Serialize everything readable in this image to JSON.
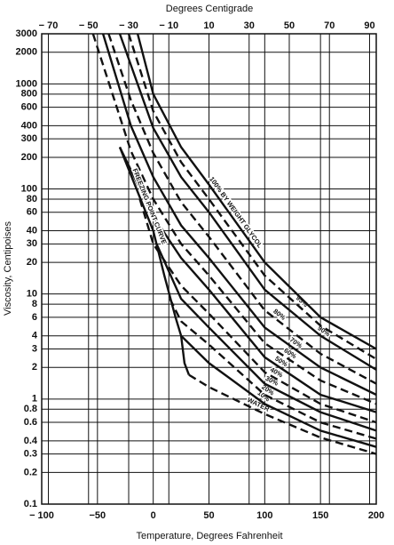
{
  "chart_data": {
    "type": "line",
    "title": "Degrees Centigrade",
    "xlabel": "Temperature, Degrees Fahrenheit",
    "ylabel": "Viscosity, Centipoises",
    "yscale": "log",
    "grid": true,
    "color": "#111",
    "xlim": [
      -100,
      200
    ],
    "xticks": [
      {
        "value": -100,
        "label": "− 100"
      },
      {
        "value": -50,
        "label": "−50"
      },
      0,
      50,
      100,
      150,
      200
    ],
    "x2lim": [
      -73.33,
      93.33
    ],
    "x2ticks": [
      {
        "value": -70,
        "label": "− 70"
      },
      {
        "value": -50,
        "label": "− 50"
      },
      {
        "value": -30,
        "label": "− 30"
      },
      {
        "value": -10,
        "label": "− 10"
      },
      10,
      30,
      50,
      70,
      90
    ],
    "ylim": [
      0.1,
      3000
    ],
    "yticks": [
      0.1,
      0.2,
      0.3,
      0.4,
      0.6,
      0.8,
      1,
      2,
      3,
      4,
      6,
      8,
      10,
      20,
      30,
      40,
      60,
      80,
      100,
      200,
      300,
      400,
      600,
      800,
      1000,
      2000,
      3000
    ],
    "series": [
      {
        "name": "WATER",
        "dashed": true,
        "x": [
          32,
          50,
          100,
          150,
          200
        ],
        "values": [
          1.7,
          1.3,
          0.72,
          0.43,
          0.3
        ]
      },
      {
        "name": "10%",
        "dashed": false,
        "x": [
          25,
          50,
          100,
          150,
          200
        ],
        "values": [
          4,
          2.2,
          0.9,
          0.5,
          0.35
        ]
      },
      {
        "name": "20%",
        "dashed": true,
        "x": [
          15,
          25,
          50,
          100,
          150,
          200
        ],
        "values": [
          9,
          5.5,
          3.3,
          1.1,
          0.6,
          0.42
        ]
      },
      {
        "name": "30%",
        "dashed": false,
        "x": [
          3,
          25,
          50,
          100,
          150,
          200
        ],
        "values": [
          30,
          9,
          4.8,
          1.4,
          0.75,
          0.5
        ]
      },
      {
        "name": "40%",
        "dashed": true,
        "x": [
          -12,
          0,
          25,
          50,
          100,
          150,
          200
        ],
        "values": [
          80,
          30,
          12,
          6.5,
          1.8,
          0.9,
          0.6
        ]
      },
      {
        "name": "50%",
        "dashed": false,
        "x": [
          -30,
          0,
          25,
          50,
          100,
          150,
          200
        ],
        "values": [
          250,
          55,
          22,
          11,
          2.5,
          1.1,
          0.75
        ]
      },
      {
        "name": "60%",
        "dashed": true,
        "x": [
          -54,
          -20,
          0,
          25,
          50,
          100,
          150,
          200
        ],
        "values": [
          3000,
          230,
          80,
          30,
          15,
          3.4,
          1.5,
          0.9
        ]
      },
      {
        "name": "70%",
        "dashed": false,
        "x": [
          -45,
          -20,
          0,
          25,
          50,
          100,
          150,
          200
        ],
        "values": [
          3000,
          400,
          130,
          45,
          22,
          4.8,
          2,
          1.1
        ]
      },
      {
        "name": "80%",
        "dashed": true,
        "x": [
          -40,
          -20,
          0,
          25,
          50,
          100,
          150,
          200
        ],
        "values": [
          3000,
          700,
          220,
          75,
          35,
          7,
          2.7,
          1.4
        ]
      },
      {
        "name": "90%",
        "dashed": false,
        "x": [
          -30,
          0,
          25,
          50,
          100,
          150,
          200
        ],
        "values": [
          3000,
          380,
          130,
          60,
          11,
          4,
          1.9
        ]
      },
      {
        "name": "95%",
        "dashed": true,
        "x": [
          -22,
          0,
          25,
          50,
          100,
          150,
          200
        ],
        "values": [
          3000,
          550,
          180,
          80,
          15,
          5,
          2.4
        ]
      },
      {
        "name": "100% BY WEIGHT GLYCOL",
        "dashed": false,
        "x": [
          -14,
          0,
          25,
          50,
          100,
          150,
          200
        ],
        "values": [
          3000,
          800,
          250,
          110,
          20,
          6,
          3
        ]
      },
      {
        "name": "FREEZING POINT CURVE",
        "dashed": false,
        "x": [
          -30,
          -15,
          0,
          10,
          20,
          25,
          28,
          32
        ],
        "values": [
          250,
          100,
          40,
          15,
          6,
          4,
          2.2,
          1.7
        ]
      }
    ]
  }
}
